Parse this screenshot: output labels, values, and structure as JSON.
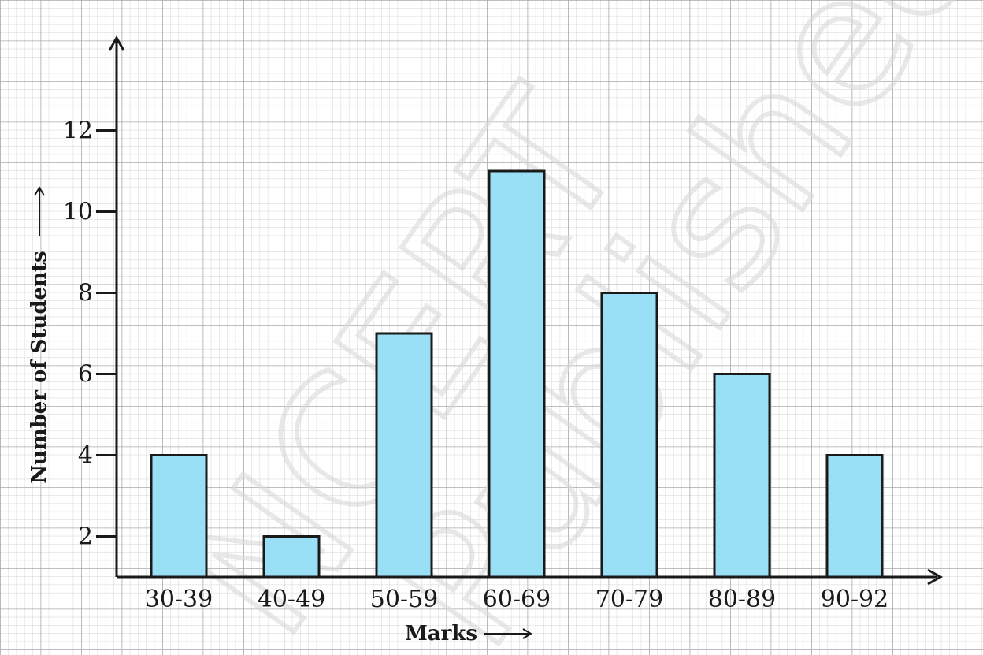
{
  "chart_data": {
    "type": "bar",
    "categories": [
      "30-39",
      "40-49",
      "50-59",
      "60-69",
      "70-79",
      "80-89",
      "90-92"
    ],
    "values": [
      4,
      2,
      7,
      11,
      8,
      6,
      4
    ],
    "xlabel": "Marks",
    "ylabel": "Number of Students",
    "ylim": [
      1,
      13
    ],
    "yticks": [
      2,
      4,
      6,
      8,
      10,
      12
    ],
    "grid": "graph-paper",
    "bar_color": "#99e0f7",
    "bar_edge_color": "#1a1a1a",
    "axis_color": "#1a1a1a"
  },
  "watermark": {
    "texts": [
      "NCERT",
      "Published"
    ]
  }
}
